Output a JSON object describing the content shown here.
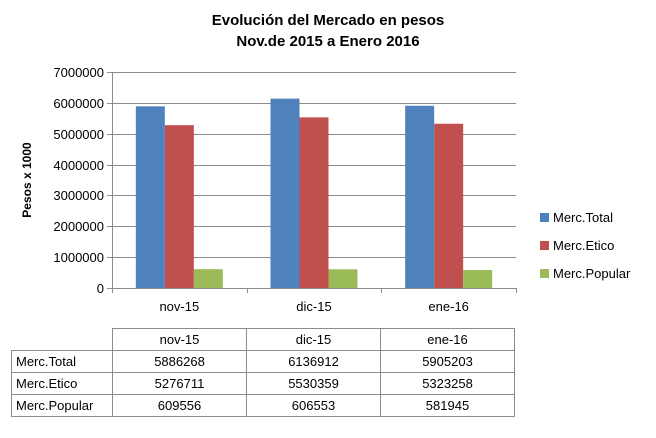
{
  "chart_data": {
    "type": "bar",
    "title": [
      "Evolución del Mercado en pesos",
      "Nov.de 2015 a Enero 2016"
    ],
    "ylabel": "Pesos x 1000",
    "xlabel": "",
    "ylim": [
      0,
      7000000
    ],
    "yticks": [
      "0",
      "1000000",
      "2000000",
      "3000000",
      "4000000",
      "5000000",
      "6000000",
      "7000000"
    ],
    "grid": true,
    "legend_position": "right",
    "categories": [
      "nov-15",
      "dic-15",
      "ene-16"
    ],
    "series": [
      {
        "name": "Merc.Total",
        "color": "#4f81bd",
        "values": [
          5886268,
          6136912,
          5905203
        ],
        "labels": [
          "5886268",
          "6136912",
          "5905203"
        ]
      },
      {
        "name": "Merc.Etico",
        "color": "#c0504d",
        "values": [
          5276711,
          5530359,
          5323258
        ],
        "labels": [
          "5276711",
          "5530359",
          "5323258"
        ]
      },
      {
        "name": "Merc.Popular",
        "color": "#9bbb59",
        "values": [
          609556,
          606553,
          581945
        ],
        "labels": [
          "609556",
          "606553",
          "581945"
        ]
      }
    ]
  }
}
